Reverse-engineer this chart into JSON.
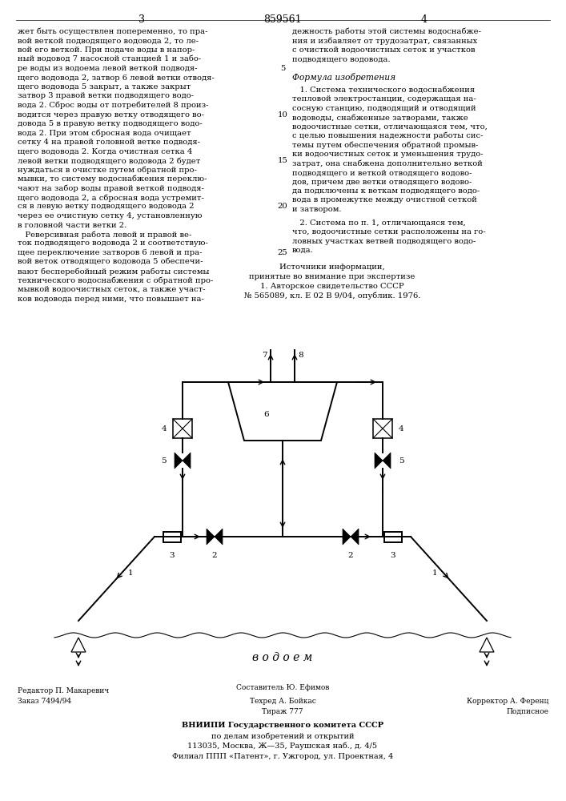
{
  "page_number_left": "3",
  "page_number_center": "859561",
  "page_number_right": "4",
  "left_column_text": [
    "жет быть осуществлен попеременно, то пра-",
    "вой веткой подводящего водовода 2, то ле-",
    "вой его веткой. При подаче воды в напор-",
    "ный водовод 7 насосной станцией 1 и забо-",
    "ре воды из водоема левой веткой подводя-",
    "щего водовода 2, затвор 6 левой ветки отводя-",
    "щего водовода 5 закрыт, а также закрыт",
    "затвор 3 правой ветки подводящего водо-",
    "вода 2. Сброс воды от потребителей 8 произ-",
    "водится через правую ветку отводящего во-",
    "довода 5 в правую ветку подводящего водо-",
    "вода 2. При этом сбросная вода очищает",
    "сетку 4 на правой головной ветке подводя-",
    "щего водовода 2. Когда очистная сетка 4",
    "левой ветки подводящего водовода 2 будет",
    "нуждаться в очистке путем обратной про-",
    "мывки, то систему водоснабжения переклю-",
    "чают на забор воды правой веткой подводя-",
    "щего водовода 2, а сбросная вода устремит-",
    "ся в левую ветку подводящего водовода 2",
    "через ее очистную сетку 4, установленную",
    "в головной части ветки 2."
  ],
  "left_column_text2": [
    "   Реверсивная работа левой и правой ве-",
    "ток подводящего водовода 2 и соответствую-",
    "щее переключение затворов 6 левой и пра-",
    "вой веток отводящего водовода 5 обеспечи-",
    "вают бесперебойный режим работы системы",
    "технического водоснабжения с обратной про-",
    "мывкой водоочистных сеток, а также участ-",
    "ков водовода перед ними, что повышает на-"
  ],
  "right_column_text": [
    "дежность работы этой системы водоснабже-",
    "ния и избавляет от трудозатрат, связанных",
    "с очисткой водоочистных сеток и участков",
    "подводящего водовода."
  ],
  "formula_title": "Формула изобретения",
  "formula_text": [
    "   1. Система технического водоснабжения",
    "тепловой электростанции, содержащая на-",
    "сосную станцию, подводящий и отводящий",
    "водоводы, снабженные затворами, также",
    "водоочистные сетки, отличающаяся тем, что,",
    "с целью повышения надежности работы сис-",
    "темы путем обеспечения обратной промыв-",
    "ки водоочистных сеток и уменьшения трудо-",
    "затрат, она снабжена дополнительно веткой",
    "подводящего и веткой отводящего водово-",
    "дов, причем две ветки отводящего водово-",
    "да подключены к веткам подводящего водо-",
    "вода в промежутке между очистной сеткой",
    "и затвором."
  ],
  "formula_text2": [
    "   2. Система по п. 1, отличающаяся тем,",
    "что, водоочистные сетки расположены на го-",
    "ловных участках ветвей подводящего водо-",
    "вода."
  ],
  "sources_title": "Источники информации,",
  "sources_text": [
    "принятые во внимание при экспертизе",
    "1. Авторское свидетельство СССР",
    "№ 565089, кл. Е 02 В 9/04, опублик. 1976."
  ],
  "vodoyem_label": "в о д о е м",
  "bottom_left1": "Редактор П. Макаревич",
  "bottom_left2": "Заказ 7494/94",
  "bottom_center1": "Составитель Ю. Ефимов",
  "bottom_center2": "Техред А. Бойкас",
  "bottom_center3": "Тираж 777",
  "bottom_right1": "Корректор А. Ференц",
  "bottom_right2": "Подписное",
  "bottom_vniiipi1": "ВНИИПИ Государственного комитета СССР",
  "bottom_vniiipi2": "по делам изобретений и открытий",
  "bottom_vniiipi3": "113035, Москва, Ж—35, Раушская наб., д. 4/5",
  "bottom_vniiipi4": "Филиал ППП «Патент», г. Ужгород, ул. Проектная, 4",
  "bg_color": "#ffffff",
  "text_color": "#000000"
}
